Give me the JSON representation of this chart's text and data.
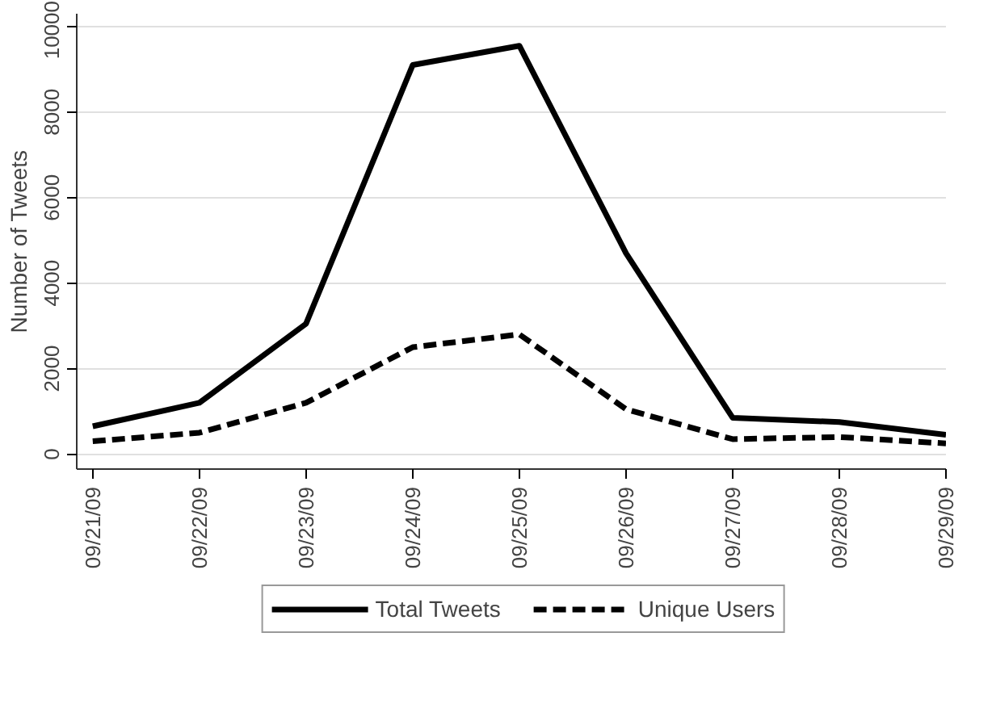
{
  "chart_data": {
    "type": "line",
    "ylabel": "Number of Tweets",
    "categories": [
      "09/21/09",
      "09/22/09",
      "09/23/09",
      "09/24/09",
      "09/25/09",
      "09/26/09",
      "09/27/09",
      "09/28/09",
      "09/29/09"
    ],
    "series": [
      {
        "name": "Total Tweets",
        "color": "#000000",
        "line_style": "solid",
        "values": [
          650,
          1200,
          3050,
          9100,
          9550,
          4700,
          850,
          750,
          450
        ]
      },
      {
        "name": "Unique Users",
        "color": "#000000",
        "line_style": "dashed",
        "values": [
          300,
          500,
          1200,
          2500,
          2800,
          1050,
          350,
          400,
          250
        ]
      }
    ],
    "ylim": [
      -350,
      10300
    ],
    "yticks": [
      0,
      2000,
      4000,
      6000,
      8000,
      10000
    ],
    "grid": "y",
    "legend": "bottom",
    "marker": "none"
  }
}
